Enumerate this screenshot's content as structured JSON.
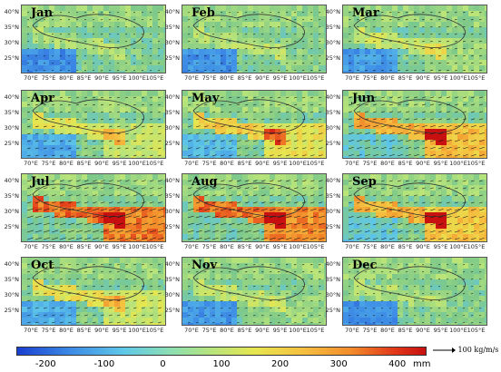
{
  "panels": [
    {
      "month": "Jan"
    },
    {
      "month": "Feb"
    },
    {
      "month": "Mar"
    },
    {
      "month": "Apr"
    },
    {
      "month": "May"
    },
    {
      "month": "Jun"
    },
    {
      "month": "Jul"
    },
    {
      "month": "Aug"
    },
    {
      "month": "Sep"
    },
    {
      "month": "Oct"
    },
    {
      "month": "Nov"
    },
    {
      "month": "Dec"
    }
  ],
  "lat_ticks": [
    "40°N",
    "35°N",
    "30°N",
    "25°N"
  ],
  "lon_ticks": [
    "70°E",
    "75°E",
    "80°E",
    "85°E",
    "90°E",
    "95°E",
    "100°E",
    "105°E"
  ],
  "colorbar": {
    "ticks": [
      "-200",
      "-100",
      "0",
      "100",
      "200",
      "300",
      "400"
    ],
    "unit": "mm"
  },
  "vector_legend": "100 kg/m/s",
  "colors": {
    "low": "#1a3fd0",
    "mid": "#8ee0b0",
    "high": "#c81010"
  }
}
